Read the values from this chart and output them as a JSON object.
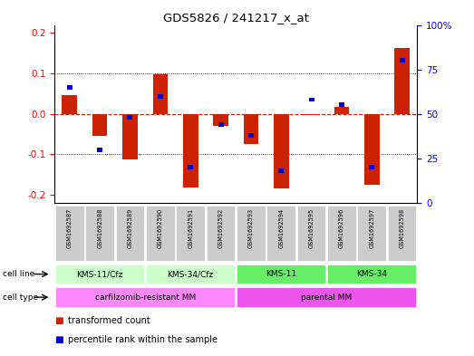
{
  "title": "GDS5826 / 241217_x_at",
  "samples": [
    "GSM1692587",
    "GSM1692588",
    "GSM1692589",
    "GSM1692590",
    "GSM1692591",
    "GSM1692592",
    "GSM1692593",
    "GSM1692594",
    "GSM1692595",
    "GSM1692596",
    "GSM1692597",
    "GSM1692598"
  ],
  "transformed_counts": [
    0.047,
    -0.055,
    -0.112,
    0.097,
    -0.183,
    -0.03,
    -0.075,
    -0.185,
    -0.002,
    0.018,
    -0.175,
    0.163
  ],
  "percentile_ranks": [
    65,
    30,
    48,
    60,
    20,
    44,
    38,
    18,
    58,
    55,
    20,
    80
  ],
  "ylim_left": [
    -0.22,
    0.22
  ],
  "ylim_right": [
    0,
    100
  ],
  "yticks_left": [
    -0.2,
    -0.1,
    0.0,
    0.1,
    0.2
  ],
  "yticks_right": [
    0,
    25,
    50,
    75,
    100
  ],
  "ytick_labels_right": [
    "0",
    "25",
    "50",
    "75",
    "100%"
  ],
  "bar_color": "#cc2200",
  "percentile_color": "#0000cc",
  "zero_line_color": "#cc2200",
  "grid_color": "#000000",
  "cell_lines": [
    {
      "label": "KMS-11/Cfz",
      "start": 0,
      "end": 3,
      "color": "#ccffcc"
    },
    {
      "label": "KMS-34/Cfz",
      "start": 3,
      "end": 6,
      "color": "#ccffcc"
    },
    {
      "label": "KMS-11",
      "start": 6,
      "end": 9,
      "color": "#66ee66"
    },
    {
      "label": "KMS-34",
      "start": 9,
      "end": 12,
      "color": "#66ee66"
    }
  ],
  "cell_types": [
    {
      "label": "carfilzomib-resistant MM",
      "start": 0,
      "end": 6,
      "color": "#ff88ff"
    },
    {
      "label": "parental MM",
      "start": 6,
      "end": 12,
      "color": "#ee55ee"
    }
  ],
  "legend_items": [
    {
      "color": "#cc2200",
      "label": "transformed count"
    },
    {
      "color": "#0000cc",
      "label": "percentile rank within the sample"
    }
  ],
  "background_color": "#ffffff",
  "sample_bg_color": "#cccccc"
}
